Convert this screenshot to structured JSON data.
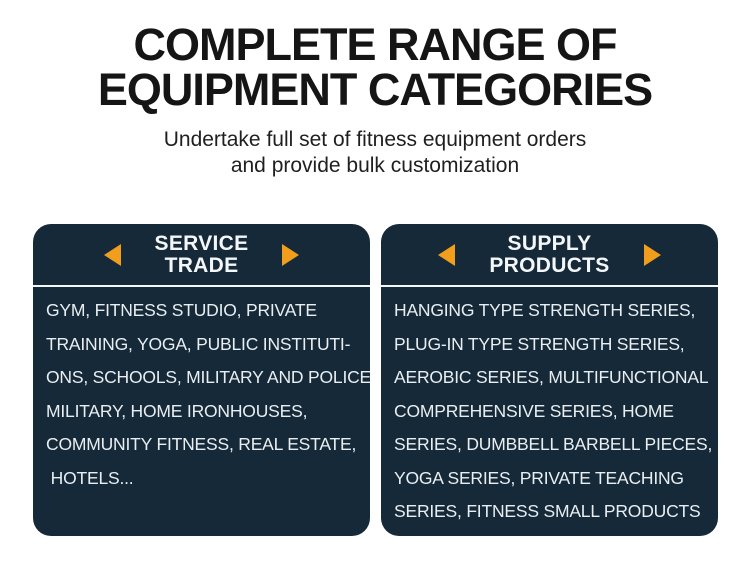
{
  "header": {
    "title_lines": [
      "COMPLETE RANGE OF",
      "EQUIPMENT CATEGORIES"
    ],
    "subtitle_lines": [
      "Undertake full set of fitness equipment orders",
      "and provide bulk customization"
    ]
  },
  "colors": {
    "card_bg": "#162938",
    "arrow": "#f09e1c",
    "body_text": "#e8eef1",
    "divider": "#f4f7f8",
    "title": "#151515"
  },
  "cards": [
    {
      "name": "service-trade",
      "title_lines": [
        "SERVICE",
        "TRADE"
      ],
      "prev_icon": "left-triangle-arrow",
      "next_icon": "right-triangle-arrow",
      "lines": [
        "GYM, FITNESS STUDIO, PRIVATE",
        "TRAINING, YOGA, PUBLIC INSTITUTI-",
        "ONS, SCHOOLS, MILITARY AND POLICE",
        "MILITARY, HOME IRONHOUSES,",
        "COMMUNITY FITNESS, REAL ESTATE,",
        " HOTELS..."
      ]
    },
    {
      "name": "supply-products",
      "title_lines": [
        "SUPPLY",
        "PRODUCTS"
      ],
      "prev_icon": "left-triangle-arrow",
      "next_icon": "right-triangle-arrow",
      "lines": [
        "HANGING TYPE STRENGTH SERIES,",
        "PLUG-IN TYPE STRENGTH SERIES,",
        "AEROBIC SERIES, MULTIFUNCTIONAL",
        "COMPREHENSIVE SERIES, HOME",
        "SERIES, DUMBBELL BARBELL PIECES,",
        "YOGA SERIES, PRIVATE TEACHING",
        "SERIES, FITNESS SMALL PRODUCTS"
      ]
    }
  ]
}
